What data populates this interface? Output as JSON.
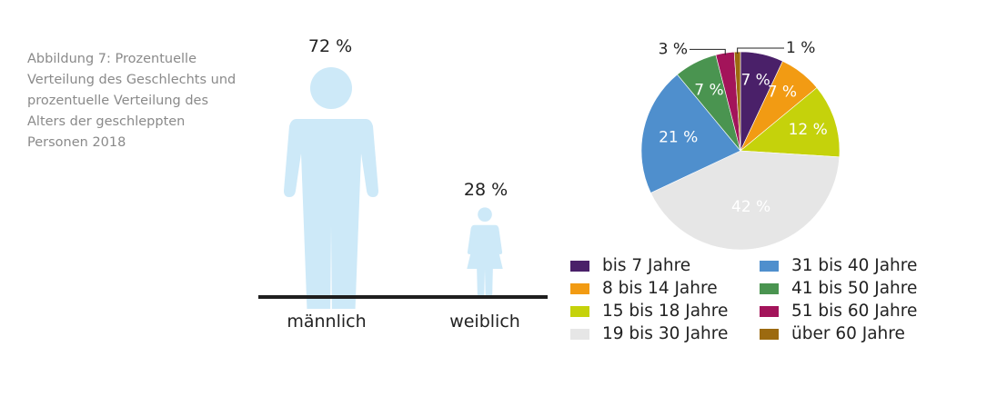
{
  "caption": "Abbildung 7: Prozentuelle Verteilung des Geschlechts und prozentuelle Verteilung des Alters der geschleppten Personen 2018",
  "gender": {
    "male": {
      "label": "männlich",
      "value_label": "72 %"
    },
    "female": {
      "label": "weiblich",
      "value_label": "28 %"
    },
    "figure_color": "#cde9f8"
  },
  "chart_data": [
    {
      "type": "bar",
      "categories": [
        "männlich",
        "weiblich"
      ],
      "values": [
        72,
        28
      ],
      "unit": "%"
    },
    {
      "type": "pie",
      "unit": "%",
      "slices": [
        {
          "label": "bis 7 Jahre",
          "value": 7,
          "value_label": "7 %",
          "color": "#4a2069",
          "text_color": "#ffffff"
        },
        {
          "label": "8 bis 14 Jahre",
          "value": 7,
          "value_label": "7 %",
          "color": "#f29b13",
          "text_color": "#ffffff"
        },
        {
          "label": "15 bis 18 Jahre",
          "value": 12,
          "value_label": "12 %",
          "color": "#c5d20b",
          "text_color": "#ffffff"
        },
        {
          "label": "19 bis 30 Jahre",
          "value": 42,
          "value_label": "42 %",
          "color": "#e6e6e6",
          "text_color": "#ffffff"
        },
        {
          "label": "31 bis 40 Jahre",
          "value": 21,
          "value_label": "21 %",
          "color": "#4f8fcd",
          "text_color": "#ffffff"
        },
        {
          "label": "41 bis 50 Jahre",
          "value": 7,
          "value_label": "7 %",
          "color": "#4a9450",
          "text_color": "#ffffff"
        },
        {
          "label": "51 bis 60 Jahre",
          "value": 3,
          "value_label": "3 %",
          "color": "#a3145a",
          "text_color": "#222222"
        },
        {
          "label": "über 60 Jahre",
          "value": 1,
          "value_label": "1 %",
          "color": "#9c6a10",
          "text_color": "#222222"
        }
      ]
    }
  ]
}
